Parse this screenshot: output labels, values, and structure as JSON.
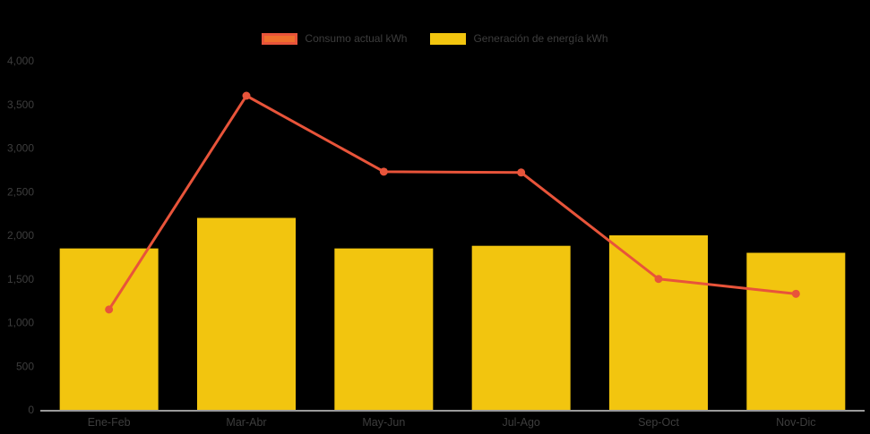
{
  "chart_data": {
    "type": "bar",
    "title": "",
    "xlabel": "",
    "ylabel": "",
    "categories": [
      "Ene-Feb",
      "Mar-Abr",
      "May-Jun",
      "Jul-Ago",
      "Sep-Oct",
      "Nov-Dic"
    ],
    "series": [
      {
        "name": "Consumo actual kWh",
        "type": "line",
        "color": "#E8543A",
        "values": [
          1150,
          3600,
          2730,
          2720,
          1500,
          1330
        ]
      },
      {
        "name": "Generación de energía kWh",
        "type": "bar",
        "color": "#F2C50F",
        "values": [
          1850,
          2200,
          1850,
          1880,
          2000,
          1800
        ]
      }
    ],
    "ylim": [
      0,
      4000
    ],
    "ytick_step": 500,
    "ytick_labels": [
      "0",
      "500",
      "1,000",
      "1,500",
      "2,000",
      "2,500",
      "3,000",
      "3,500",
      "4,000"
    ],
    "grid": false,
    "legend_position": "top"
  },
  "legend": {
    "consumo_fill": "#EE6F2D",
    "consumo_border": "#E8543A",
    "generacion_fill": "#F2C50F",
    "generacion_border": "#F2C50F"
  },
  "colors": {
    "background": "#000000",
    "text": "#3d3d3d",
    "axis_line": "#9a9a9a"
  }
}
